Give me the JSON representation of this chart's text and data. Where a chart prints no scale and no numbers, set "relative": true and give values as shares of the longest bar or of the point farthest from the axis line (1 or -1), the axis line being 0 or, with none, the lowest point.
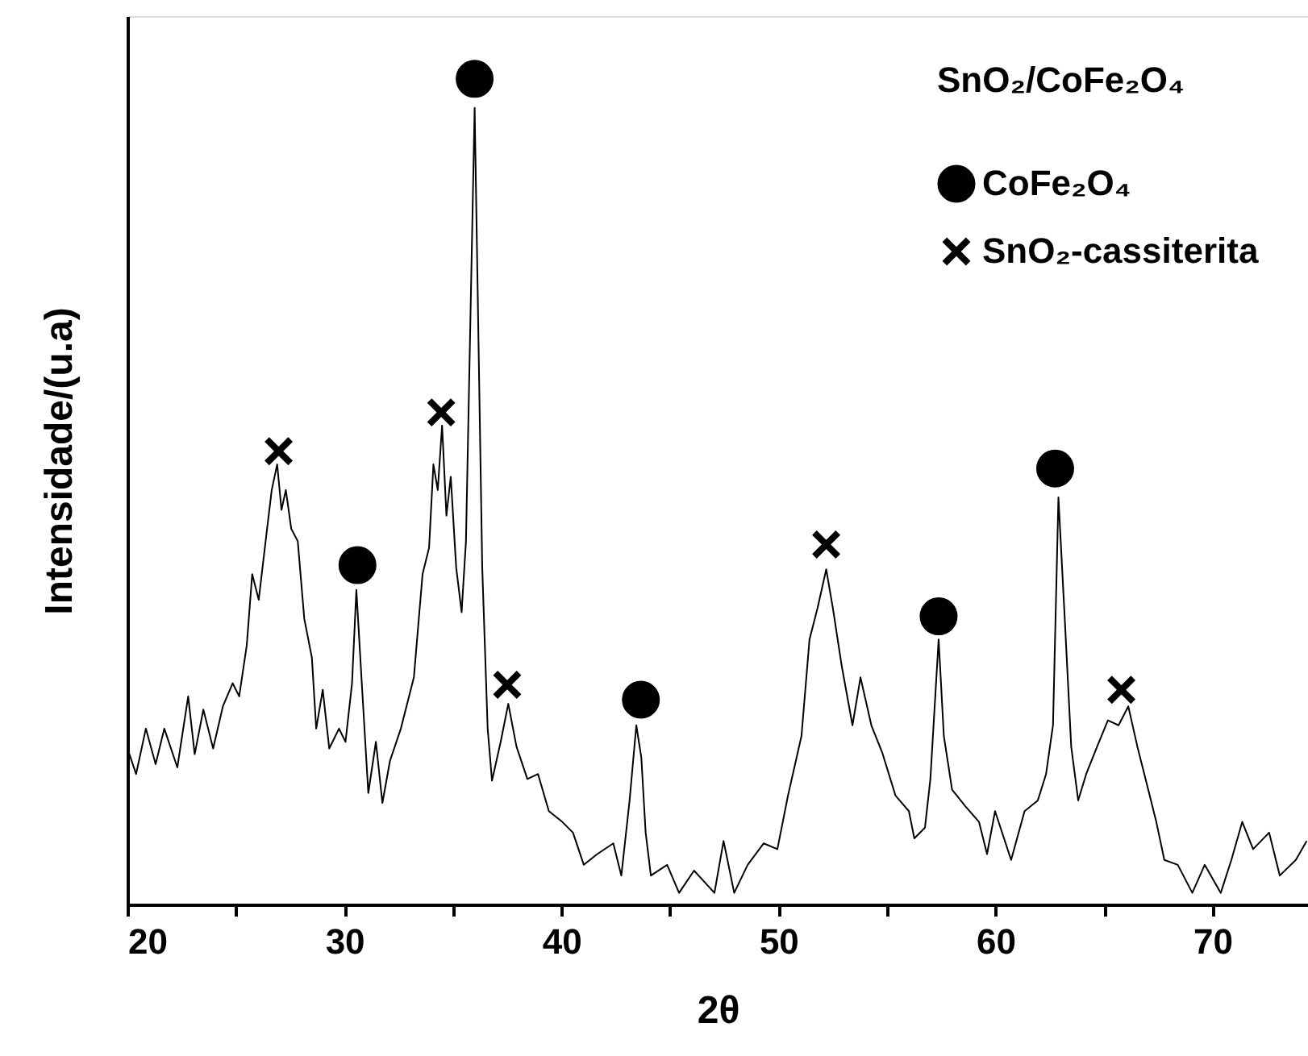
{
  "chart_data": {
    "type": "line",
    "relative": true,
    "legend_title": "SnO₂/CoFe₂O₄",
    "xlabel": "2θ",
    "ylabel": "Intensidade/(u.a)",
    "xlim": [
      20,
      74.4
    ],
    "xticks": [
      20,
      {
        "value": 25,
        "label": null
      },
      30,
      {
        "value": 35,
        "label": null
      },
      40,
      {
        "value": 45,
        "label": null
      },
      50,
      {
        "value": 55,
        "label": null
      },
      60,
      {
        "value": 65,
        "label": null
      },
      70
    ],
    "grid": false,
    "legend": "top right",
    "series": [
      {
        "color": "#000000",
        "marker": "none",
        "line_style": "solid",
        "x": [
          20.0,
          20.4,
          20.85,
          21.3,
          21.7,
          22.3,
          22.8,
          23.1,
          23.5,
          23.95,
          24.4,
          24.85,
          25.15,
          25.5,
          25.75,
          26.05,
          26.4,
          26.65,
          26.9,
          27.1,
          27.3,
          27.55,
          27.85,
          28.15,
          28.5,
          28.7,
          29.0,
          29.3,
          29.75,
          30.05,
          30.35,
          30.55,
          30.8,
          31.1,
          31.45,
          31.75,
          32.1,
          32.6,
          33.2,
          33.6,
          33.9,
          34.1,
          34.3,
          34.5,
          34.7,
          34.9,
          35.15,
          35.4,
          35.6,
          36.0,
          36.35,
          36.6,
          36.8,
          37.2,
          37.55,
          37.93,
          38.43,
          38.92,
          39.42,
          40.04,
          40.53,
          41.03,
          41.65,
          42.39,
          42.76,
          43.14,
          43.45,
          43.68,
          43.88,
          44.12,
          44.87,
          45.42,
          46.11,
          47.05,
          47.47,
          47.96,
          48.58,
          49.32,
          49.95,
          50.44,
          51.06,
          51.43,
          51.81,
          52.2,
          52.5,
          52.92,
          53.41,
          53.78,
          54.28,
          54.78,
          55.39,
          56.01,
          56.26,
          56.75,
          57.0,
          57.38,
          57.62,
          58.0,
          58.61,
          59.24,
          59.61,
          59.98,
          60.72,
          61.34,
          61.95,
          62.33,
          62.65,
          62.9,
          63.19,
          63.49,
          63.81,
          64.18,
          64.68,
          65.18,
          65.67,
          66.12,
          66.54,
          67.04,
          67.41,
          67.78,
          68.4,
          69.07,
          69.64,
          70.38,
          70.87,
          71.37,
          71.87,
          72.61,
          73.1,
          73.84,
          74.34
        ],
        "values": [
          0.189,
          0.158,
          0.213,
          0.17,
          0.213,
          0.166,
          0.252,
          0.182,
          0.236,
          0.189,
          0.24,
          0.268,
          0.252,
          0.314,
          0.4,
          0.369,
          0.447,
          0.502,
          0.533,
          0.478,
          0.502,
          0.455,
          0.44,
          0.346,
          0.299,
          0.213,
          0.26,
          0.189,
          0.213,
          0.197,
          0.268,
          0.381,
          0.268,
          0.135,
          0.197,
          0.123,
          0.174,
          0.213,
          0.275,
          0.4,
          0.432,
          0.533,
          0.502,
          0.58,
          0.471,
          0.518,
          0.408,
          0.354,
          0.44,
          0.965,
          0.408,
          0.213,
          0.15,
          0.197,
          0.243,
          0.191,
          0.152,
          0.158,
          0.113,
          0.1,
          0.087,
          0.048,
          0.061,
          0.074,
          0.035,
          0.126,
          0.217,
          0.178,
          0.087,
          0.035,
          0.048,
          0.014,
          0.041,
          0.014,
          0.077,
          0.014,
          0.048,
          0.074,
          0.067,
          0.132,
          0.204,
          0.321,
          0.36,
          0.406,
          0.36,
          0.288,
          0.217,
          0.275,
          0.217,
          0.184,
          0.132,
          0.113,
          0.08,
          0.093,
          0.152,
          0.321,
          0.204,
          0.139,
          0.119,
          0.1,
          0.061,
          0.113,
          0.054,
          0.113,
          0.126,
          0.158,
          0.217,
          0.493,
          0.347,
          0.191,
          0.126,
          0.158,
          0.191,
          0.223,
          0.217,
          0.24,
          0.191,
          0.139,
          0.1,
          0.054,
          0.048,
          0.014,
          0.048,
          0.014,
          0.054,
          0.1,
          0.067,
          0.087,
          0.035,
          0.054,
          0.077
        ]
      },
      {
        "type": "scatter",
        "name": "CoFe₂O₄",
        "color": "#000000",
        "marker": "circle",
        "x": [
          30.6,
          36.0,
          43.66,
          57.38,
          62.75
        ],
        "values": [
          0.411,
          1.0,
          0.248,
          0.349,
          0.528
        ]
      },
      {
        "type": "scatter",
        "name": "SnO₂-cassiterita",
        "color": "#000000",
        "marker": "cross",
        "x": [
          26.97,
          34.46,
          37.5,
          52.2,
          65.8
        ],
        "values": [
          0.549,
          0.596,
          0.266,
          0.436,
          0.26
        ]
      }
    ]
  }
}
